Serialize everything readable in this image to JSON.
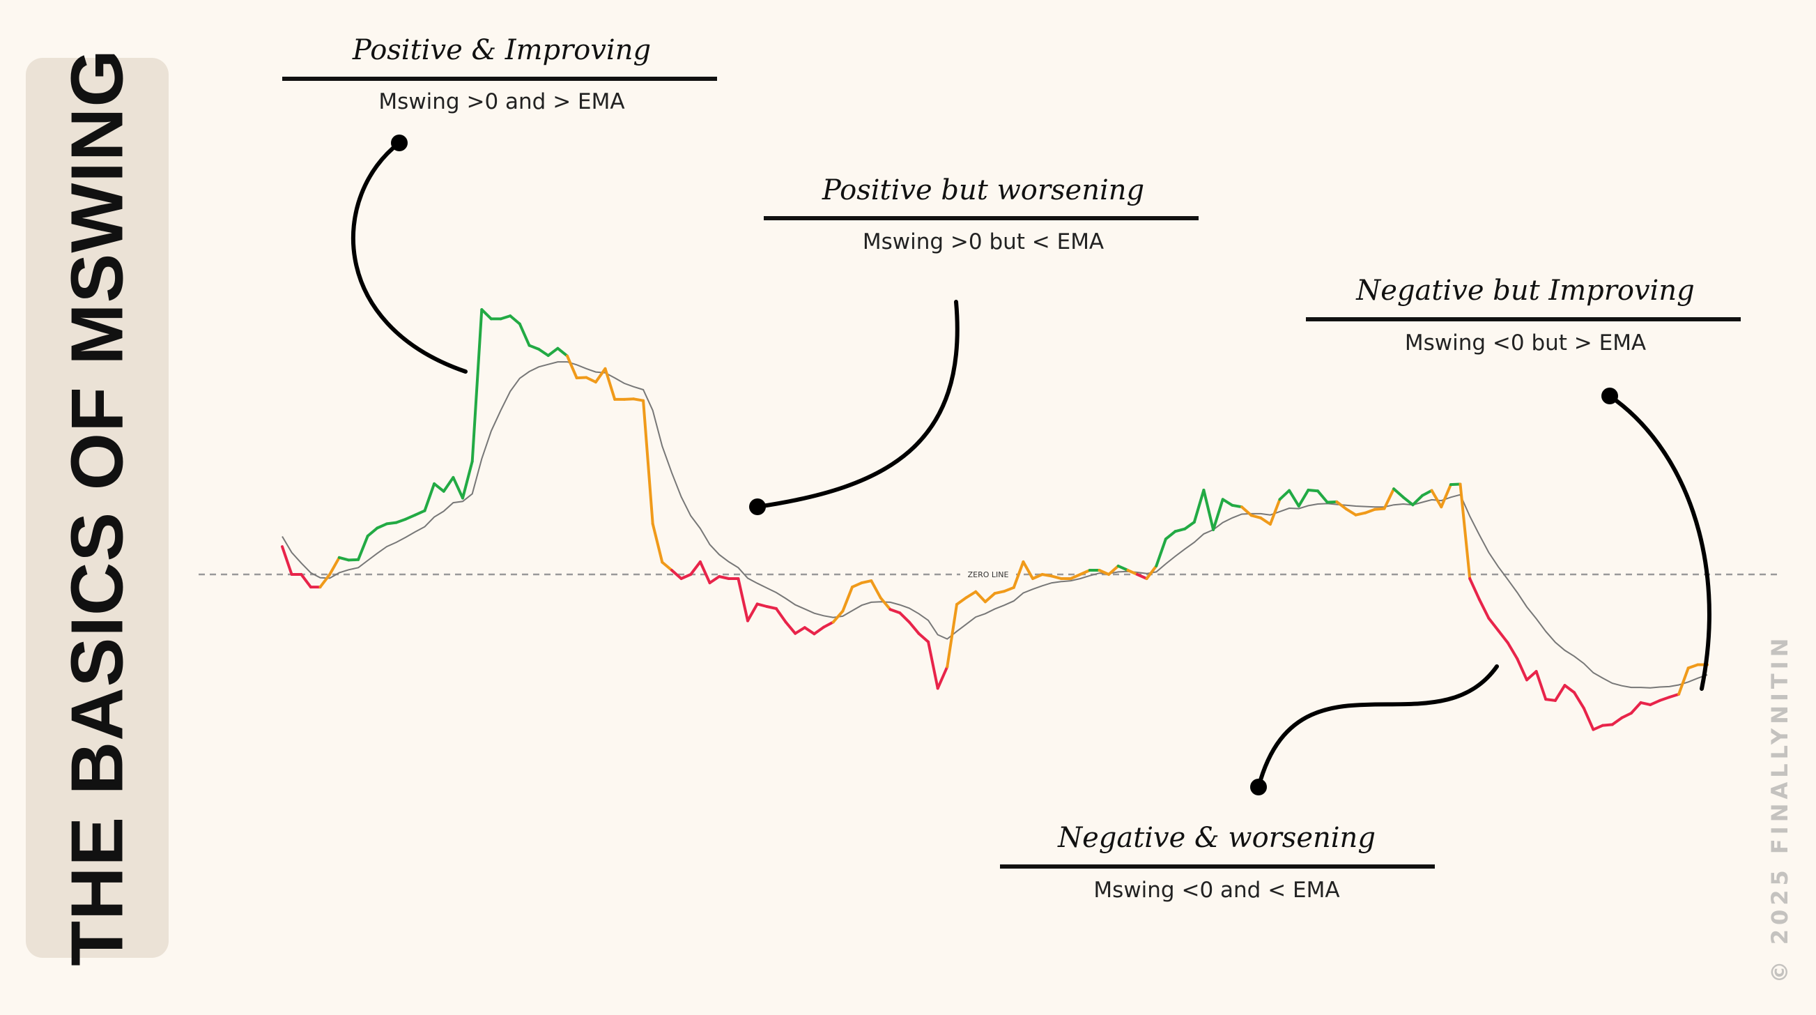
{
  "side_title": "THE BASICS OF MSWING",
  "watermark": "© 2025 FINALLYNITIN",
  "colors": {
    "positive_improving": "#22aa44",
    "transition": "#f09a1a",
    "negative_worsening": "#e8244a",
    "ema": "#777777",
    "zero_line": "#999999",
    "panel": "#ebe2d6",
    "background": "#fdf8f1"
  },
  "annotations": [
    {
      "title": "Positive & Improving",
      "subtitle": "Mswing >0 and > EMA"
    },
    {
      "title": "Positive but worsening",
      "subtitle": "Mswing >0 but < EMA"
    },
    {
      "title": "Negative but Improving",
      "subtitle": "Mswing <0 but > EMA"
    },
    {
      "title": "Negative & worsening",
      "subtitle": "Mswing <0 and < EMA"
    }
  ],
  "chart_data": {
    "type": "line",
    "zero_line_label": "ZERO LINE",
    "grid": false,
    "axes_visible": false,
    "ylim": [
      -40,
      65
    ],
    "series": [
      {
        "role": "mswing",
        "values": [
          6.6,
          0,
          0,
          -3,
          -3,
          0,
          4,
          3.4,
          3.5,
          9.1,
          11,
          12,
          12.3,
          13.1,
          14.1,
          15.1,
          21.5,
          19.7,
          23,
          18.1,
          26.8,
          62.8,
          60.6,
          60.6,
          61.3,
          59.4,
          54.3,
          53.4,
          51.9,
          53.6,
          51.8,
          46.6,
          46.7,
          45.6,
          48.8,
          41.5,
          41.5,
          41.6,
          41.2,
          12,
          2.9,
          1,
          -1,
          0,
          3,
          -2,
          -0.5,
          -1,
          -1,
          -11,
          -7,
          -7.6,
          -8.1,
          -11.3,
          -14,
          -12.6,
          -14.1,
          -12.5,
          -11.3,
          -8.7,
          -3,
          -2,
          -1.5,
          -5.6,
          -8.3,
          -9.1,
          -11.3,
          -14,
          -16,
          -27,
          -21.9,
          -7.1,
          -5.5,
          -4.1,
          -6.5,
          -4.5,
          -4,
          -3.1,
          3,
          -1,
          0,
          -0.4,
          -1,
          -1,
          0,
          1,
          1,
          0,
          2,
          1,
          0,
          -1,
          2,
          8.4,
          10.2,
          10.8,
          12.4,
          20,
          10.6,
          17.8,
          16.4,
          16,
          14,
          13.4,
          11.9,
          17.8,
          19.9,
          16.2,
          20,
          19.8,
          17.1,
          17.2,
          15.5,
          14.1,
          14.6,
          15.4,
          15.6,
          20.3,
          18.3,
          16.5,
          18.7,
          19.9,
          16,
          21.3,
          21.4,
          -1,
          -5.9,
          -10.4,
          -13.3,
          -16.2,
          -20,
          -25,
          -23,
          -29.6,
          -29.9,
          -26.3,
          -28,
          -31.7,
          -36.8,
          -35.8,
          -35.6,
          -34,
          -32.9,
          -30.4,
          -30.9,
          -29.9,
          -29.1,
          -28.4,
          -22.2,
          -21.4,
          -21.4
        ]
      },
      {
        "role": "ema",
        "values": [
          9,
          5.2,
          2.7,
          0.4,
          -0.8,
          -0.9,
          0.4,
          1.1,
          1.6,
          3.3,
          5,
          6.6,
          7.6,
          8.8,
          10.1,
          11.3,
          13.6,
          15,
          17,
          17.3,
          19.1,
          27.4,
          34,
          38.9,
          43.4,
          46.5,
          48.1,
          49.2,
          49.8,
          50.4,
          50.4,
          49.7,
          48.8,
          48,
          47.8,
          46.6,
          45.3,
          44.5,
          43.8,
          38.9,
          30.4,
          24.1,
          18.4,
          13.9,
          10.9,
          7.1,
          4.7,
          3,
          1.6,
          -0.9,
          -2.1,
          -3.2,
          -4.3,
          -5.7,
          -7.2,
          -8.2,
          -9.2,
          -9.8,
          -10.2,
          -9.9,
          -8.6,
          -7.3,
          -6.6,
          -6.5,
          -6.6,
          -7.2,
          -8,
          -9.3,
          -10.9,
          -14.3,
          -15.3,
          -13.5,
          -11.8,
          -10.1,
          -9.3,
          -8.2,
          -7.3,
          -6.3,
          -4.4,
          -3.5,
          -2.7,
          -2,
          -1.7,
          -1.5,
          -1,
          -0.3,
          0.3,
          0.2,
          0.6,
          0.7,
          0.5,
          0.2,
          0.6,
          2.5,
          4.3,
          6,
          7.6,
          9.6,
          10.6,
          12.3,
          13.4,
          14.3,
          14.4,
          14.4,
          14.1,
          14.9,
          15.7,
          15.6,
          16.3,
          16.7,
          16.8,
          16.6,
          16.4,
          16.2,
          16.1,
          16,
          16,
          16.5,
          16.7,
          16.5,
          17.1,
          17.7,
          17.5,
          18.3,
          18.9,
          13.8,
          9.4,
          5.2,
          1.8,
          -1.2,
          -4.3,
          -7.7,
          -10.5,
          -13.5,
          -16.1,
          -18,
          -19.4,
          -21.1,
          -23.3,
          -24.6,
          -25.8,
          -26.4,
          -26.8,
          -26.8,
          -26.9,
          -26.7,
          -26.6,
          -26.2,
          -25.5,
          -24.6,
          -23.8
        ]
      }
    ]
  }
}
